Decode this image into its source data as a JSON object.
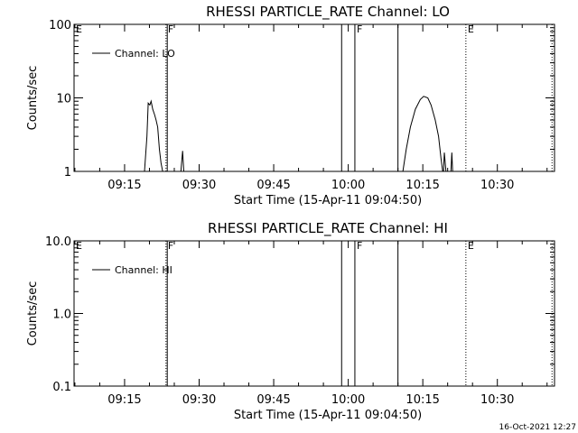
{
  "footer": {
    "timestamp": "16-Oct-2021 12:27"
  },
  "chart_data": [
    {
      "type": "line",
      "title": "RHESSI PARTICLE_RATE Channel: LO",
      "xlabel": "Start Time (15-Apr-11 09:04:50)",
      "ylabel": "Counts/sec",
      "yscale": "log",
      "ylim": [
        1,
        100
      ],
      "xlim": [
        "09:04:50",
        "10:41:30"
      ],
      "x_ticks": [
        "09:15",
        "09:30",
        "09:45",
        "10:00",
        "10:15",
        "10:30"
      ],
      "y_ticks": [
        1,
        10,
        100
      ],
      "y_tick_labels": [
        "1",
        "10",
        "100"
      ],
      "legend_position": "top-left",
      "series": [
        {
          "name": "Channel: LO",
          "color": "#000000",
          "points": [
            [
              "09:19:00",
              1.0
            ],
            [
              "09:19:30",
              3.0
            ],
            [
              "09:19:45",
              8.5
            ],
            [
              "09:20:05",
              8.0
            ],
            [
              "09:20:20",
              9.0
            ],
            [
              "09:20:40",
              7.0
            ],
            [
              "09:21:00",
              6.0
            ],
            [
              "09:21:20",
              5.0
            ],
            [
              "09:21:40",
              4.0
            ],
            [
              "09:22:00",
              2.0
            ],
            [
              "09:22:20",
              1.3
            ],
            [
              "09:22:40",
              1.0
            ],
            [
              "09:26:20",
              1.0
            ],
            [
              "09:26:40",
              1.9
            ],
            [
              "09:26:55",
              1.0
            ],
            [
              "10:11:00",
              1.0
            ],
            [
              "10:11:40",
              2.0
            ],
            [
              "10:12:30",
              4.0
            ],
            [
              "10:13:30",
              7.0
            ],
            [
              "10:14:30",
              9.5
            ],
            [
              "10:15:10",
              10.5
            ],
            [
              "10:16:00",
              10.0
            ],
            [
              "10:16:40",
              8.0
            ],
            [
              "10:17:30",
              5.0
            ],
            [
              "10:18:10",
              3.0
            ],
            [
              "10:18:40",
              1.5
            ],
            [
              "10:19:00",
              1.0
            ],
            [
              "10:19:10",
              1.0
            ],
            [
              "10:19:20",
              1.8
            ],
            [
              "10:19:40",
              1.0
            ],
            [
              "10:20:40",
              1.0
            ],
            [
              "10:20:50",
              1.8
            ],
            [
              "10:21:00",
              1.0
            ]
          ]
        }
      ],
      "markers": [
        {
          "time": "09:04:50",
          "label": "E",
          "style": "none"
        },
        {
          "time": "09:23:20",
          "label": "F",
          "style": "dotted"
        },
        {
          "time": "09:23:35",
          "label": "",
          "style": "solid"
        },
        {
          "time": "09:58:40",
          "label": "",
          "style": "solid"
        },
        {
          "time": "10:01:20",
          "label": "F",
          "style": "solid"
        },
        {
          "time": "10:10:00",
          "label": "",
          "style": "solid"
        },
        {
          "time": "10:23:40",
          "label": "E",
          "style": "dotted"
        },
        {
          "time": "10:41:00",
          "label": "",
          "style": "dotted"
        }
      ]
    },
    {
      "type": "line",
      "title": "RHESSI PARTICLE_RATE Channel: HI",
      "xlabel": "Start Time (15-Apr-11 09:04:50)",
      "ylabel": "Counts/sec",
      "yscale": "log",
      "ylim": [
        0.1,
        10
      ],
      "xlim": [
        "09:04:50",
        "10:41:30"
      ],
      "x_ticks": [
        "09:15",
        "09:30",
        "09:45",
        "10:00",
        "10:15",
        "10:30"
      ],
      "y_ticks": [
        0.1,
        1,
        10
      ],
      "y_tick_labels": [
        "0.1",
        "1.0",
        "10.0"
      ],
      "legend_position": "top-left",
      "series": [
        {
          "name": "Channel: HI",
          "color": "#000000",
          "points": []
        }
      ],
      "markers": [
        {
          "time": "09:04:50",
          "label": "E",
          "style": "none"
        },
        {
          "time": "09:23:20",
          "label": "F",
          "style": "dotted"
        },
        {
          "time": "09:23:35",
          "label": "",
          "style": "solid"
        },
        {
          "time": "09:58:40",
          "label": "",
          "style": "solid"
        },
        {
          "time": "10:01:20",
          "label": "F",
          "style": "solid"
        },
        {
          "time": "10:10:00",
          "label": "",
          "style": "solid"
        },
        {
          "time": "10:23:40",
          "label": "E",
          "style": "dotted"
        },
        {
          "time": "10:41:00",
          "label": "",
          "style": "dotted"
        }
      ]
    }
  ]
}
